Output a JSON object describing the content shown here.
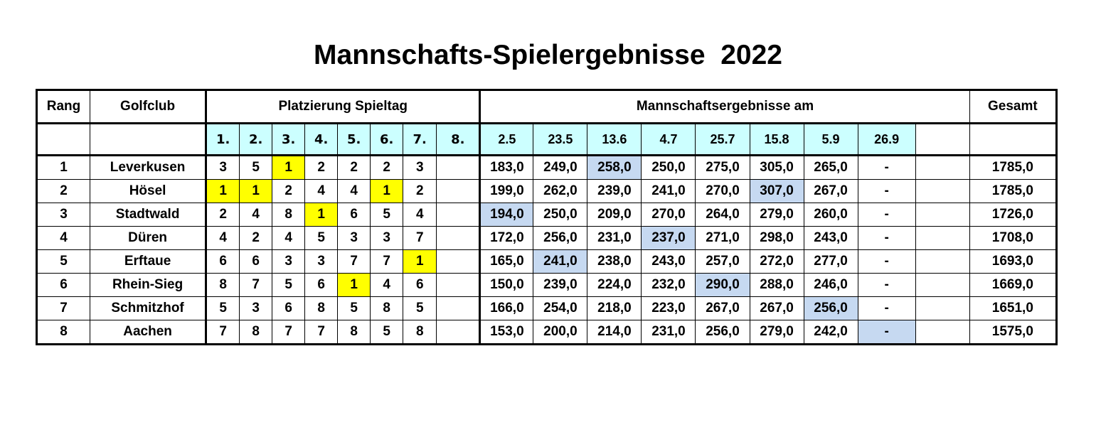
{
  "title": "Mannschafts-Spielergebnisse  2022",
  "headers": {
    "rang": "Rang",
    "golfclub": "Golfclub",
    "platzierung": "Platzierung Spieltag",
    "ergebnisse": "Mannschaftsergebnisse am",
    "gesamt": "Gesamt"
  },
  "spieltage": [
    "1.",
    "2.",
    "3.",
    "4.",
    "5.",
    "6.",
    "7.",
    "8."
  ],
  "dates": [
    "2.5",
    "23.5",
    "13.6",
    "4.7",
    "25.7",
    "15.8",
    "5.9",
    "26.9"
  ],
  "highlight_colors": {
    "day_winner": "#ffff00",
    "best_score": "#c6d9f1",
    "header": "#ccffff"
  },
  "rows": [
    {
      "rang": "1",
      "club": "Leverkusen",
      "places": [
        "3",
        "5",
        "1",
        "2",
        "2",
        "2",
        "3",
        ""
      ],
      "scores": [
        "183,0",
        "249,0",
        "258,0",
        "250,0",
        "275,0",
        "305,0",
        "265,0",
        "-"
      ],
      "total": "1785,0"
    },
    {
      "rang": "2",
      "club": "Hösel",
      "places": [
        "1",
        "1",
        "2",
        "4",
        "4",
        "1",
        "2",
        ""
      ],
      "scores": [
        "199,0",
        "262,0",
        "239,0",
        "241,0",
        "270,0",
        "307,0",
        "267,0",
        "-"
      ],
      "total": "1785,0"
    },
    {
      "rang": "3",
      "club": "Stadtwald",
      "places": [
        "2",
        "4",
        "8",
        "1",
        "6",
        "5",
        "4",
        ""
      ],
      "scores": [
        "194,0",
        "250,0",
        "209,0",
        "270,0",
        "264,0",
        "279,0",
        "260,0",
        "-"
      ],
      "total": "1726,0"
    },
    {
      "rang": "4",
      "club": "Düren",
      "places": [
        "4",
        "2",
        "4",
        "5",
        "3",
        "3",
        "7",
        ""
      ],
      "scores": [
        "172,0",
        "256,0",
        "231,0",
        "237,0",
        "271,0",
        "298,0",
        "243,0",
        "-"
      ],
      "total": "1708,0"
    },
    {
      "rang": "5",
      "club": "Erftaue",
      "places": [
        "6",
        "6",
        "3",
        "3",
        "7",
        "7",
        "1",
        ""
      ],
      "scores": [
        "165,0",
        "241,0",
        "238,0",
        "243,0",
        "257,0",
        "272,0",
        "277,0",
        "-"
      ],
      "total": "1693,0"
    },
    {
      "rang": "6",
      "club": "Rhein-Sieg",
      "places": [
        "8",
        "7",
        "5",
        "6",
        "1",
        "4",
        "6",
        ""
      ],
      "scores": [
        "150,0",
        "239,0",
        "224,0",
        "232,0",
        "290,0",
        "288,0",
        "246,0",
        "-"
      ],
      "total": "1669,0"
    },
    {
      "rang": "7",
      "club": "Schmitzhof",
      "places": [
        "5",
        "3",
        "6",
        "8",
        "5",
        "8",
        "5",
        ""
      ],
      "scores": [
        "166,0",
        "254,0",
        "218,0",
        "223,0",
        "267,0",
        "267,0",
        "256,0",
        "-"
      ],
      "total": "1651,0"
    },
    {
      "rang": "8",
      "club": "Aachen",
      "places": [
        "7",
        "8",
        "7",
        "7",
        "8",
        "5",
        "8",
        ""
      ],
      "scores": [
        "153,0",
        "200,0",
        "214,0",
        "231,0",
        "256,0",
        "279,0",
        "242,0",
        "-"
      ],
      "total": "1575,0"
    }
  ]
}
